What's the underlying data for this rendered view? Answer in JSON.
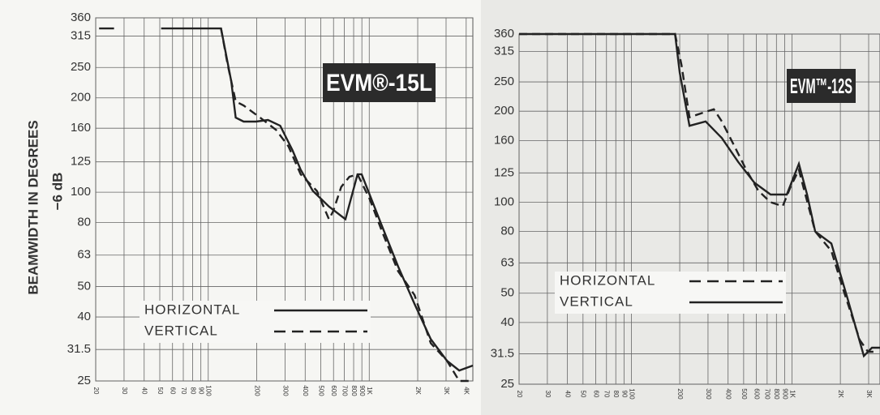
{
  "chart_data": [
    {
      "type": "line",
      "title": "EVM®-15L",
      "y_label": "BEAMWIDTH IN DEGREES",
      "y_label_2": "−6 dB",
      "xscale": "log",
      "yscale": "log",
      "grid": true,
      "legend": "lower left",
      "xlim": [
        20,
        4400
      ],
      "ylim": [
        25,
        360
      ],
      "xticks": [
        20,
        30,
        40,
        50,
        60,
        70,
        80,
        90,
        100,
        200,
        300,
        400,
        500,
        600,
        700,
        800,
        900,
        {
          "value": 1000,
          "label": "1K"
        },
        {
          "value": 2000,
          "label": "2K"
        },
        {
          "value": 3000,
          "label": "3K"
        },
        {
          "value": 4000,
          "label": "4K"
        }
      ],
      "yticks": [
        25,
        31.5,
        40,
        50,
        63,
        80,
        100,
        125,
        160,
        200,
        250,
        315,
        360
      ],
      "series": [
        {
          "name": "HORIZONTAL",
          "color": "#222222",
          "linestyle": "solid",
          "x": [
            21,
            26,
            38,
            51,
            120,
            139,
            148,
            166,
            198,
            235,
            280,
            334,
            375,
            446,
            562,
            711,
            846,
            897,
            1007,
            1200,
            1510,
            1910,
            2410,
            3040,
            3620,
            4400
          ],
          "values": [
            333,
            333,
            null,
            333,
            333,
            226,
            173,
            168,
            168,
            170,
            163,
            136,
            118,
            101,
            90,
            82,
            114,
            114,
            98,
            78,
            58,
            44,
            34,
            29,
            27,
            28
          ]
        },
        {
          "name": "VERTICAL",
          "color": "#222222",
          "linestyle": "dashed",
          "x": [
            120,
            132,
            148,
            166,
            210,
            264,
            315,
            375,
            473,
            562,
            597,
            670,
            753,
            846,
            1007,
            1200,
            1510,
            1910,
            2410,
            3040,
            3620,
            4300
          ],
          "values": [
            333,
            255,
            195,
            189,
            173,
            158,
            140,
            114,
            101,
            82,
            87,
            104,
            112,
            114,
            95,
            75,
            56,
            47,
            33,
            29,
            25,
            25
          ]
        }
      ]
    },
    {
      "type": "line",
      "title": "EVM™-12S",
      "xscale": "log",
      "yscale": "log",
      "grid": true,
      "legend": "center left",
      "xlim": [
        20,
        3530
      ],
      "ylim": [
        25,
        360
      ],
      "xticks": [
        20,
        30,
        40,
        50,
        60,
        70,
        80,
        90,
        100,
        200,
        300,
        400,
        500,
        600,
        700,
        800,
        900,
        {
          "value": 1000,
          "label": "1K"
        },
        {
          "value": 2000,
          "label": "2K"
        },
        {
          "value": 3000,
          "label": "3K"
        }
      ],
      "yticks": [
        25,
        31.5,
        40,
        50,
        63,
        80,
        100,
        125,
        160,
        200,
        250,
        315,
        360
      ],
      "series": [
        {
          "name": "HORIZONTAL",
          "color": "#222222",
          "linestyle": "dashed",
          "x": [
            20,
            187,
            205,
            230,
            274,
            326,
            366,
            436,
            519,
            618,
            736,
            875,
            984,
            1104,
            1172,
            1394,
            1758,
            2094,
            2643,
            2972,
            3335
          ],
          "values": [
            360,
            360,
            285,
            191,
            197,
            203,
            185,
            154,
            128,
            109,
            100,
            97,
            113,
            128,
            113,
            80,
            69,
            51,
            35,
            32,
            32
          ]
        },
        {
          "name": "VERTICAL",
          "color": "#222222",
          "linestyle": "solid",
          "x": [
            20,
            187,
            200,
            230,
            290,
            366,
            462,
            583,
            736,
            928,
            1104,
            1242,
            1394,
            1758,
            2218,
            2800,
            3148,
            3530
          ],
          "values": [
            360,
            360,
            268,
            179,
            185,
            163,
            136,
            116,
            106,
            106,
            134,
            106,
            80,
            73,
            48,
            31,
            33,
            33
          ]
        }
      ]
    }
  ]
}
